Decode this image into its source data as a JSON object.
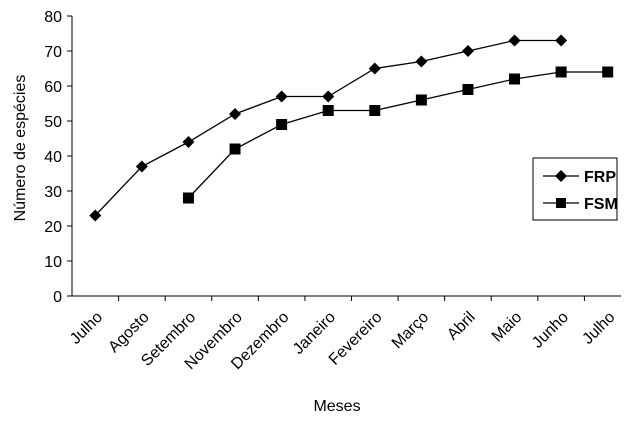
{
  "chart_data": {
    "type": "line",
    "categories": [
      "Julho",
      "Agosto",
      "Setembro",
      "Novembro",
      "Dezembro",
      "Janeiro",
      "Fevereiro",
      "Março",
      "Abril",
      "Maio",
      "Junho",
      "Julho"
    ],
    "series": [
      {
        "name": "FRP",
        "marker": "diamond",
        "values": [
          23,
          37,
          44,
          52,
          57,
          57,
          65,
          67,
          70,
          73,
          73,
          null
        ]
      },
      {
        "name": "FSM",
        "marker": "square",
        "values": [
          null,
          null,
          28,
          42,
          49,
          53,
          53,
          56,
          59,
          62,
          64,
          64
        ]
      }
    ],
    "title": "",
    "xlabel": "Meses",
    "ylabel": "Número de espécies",
    "ylim": [
      0,
      80
    ],
    "yticks": [
      0,
      10,
      20,
      30,
      40,
      50,
      60,
      70,
      80
    ],
    "grid": false,
    "legend_position": "right",
    "colors": {
      "line": "#000000",
      "marker": "#000000",
      "background": "#ffffff"
    }
  }
}
